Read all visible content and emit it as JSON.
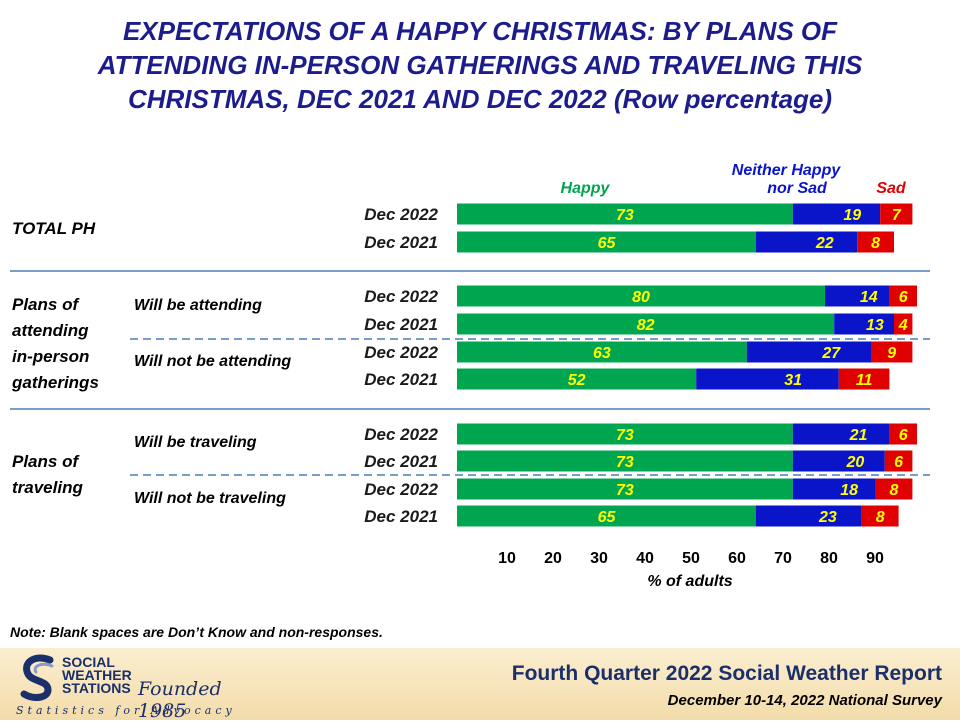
{
  "title": {
    "line1": "EXPECTATIONS OF A HAPPY CHRISTMAS: BY PLANS OF",
    "line2": "ATTENDING IN-PERSON GATHERINGS AND TRAVELING THIS",
    "line3": "CHRISTMAS, DEC 2021 AND DEC 2022 (Row percentage)"
  },
  "chart_data": {
    "type": "bar",
    "orientation": "horizontal",
    "stacked": true,
    "xlabel": "% of adults",
    "xticks": [
      10,
      20,
      30,
      40,
      50,
      60,
      70,
      80,
      90
    ],
    "xlim": [
      0,
      100
    ],
    "grid": false,
    "legend": [
      {
        "label": "Happy",
        "color": "#00a550"
      },
      {
        "label": "Neither Happy nor Sad",
        "color": "#0a14c8"
      },
      {
        "label": "Sad",
        "color": "#e00000"
      }
    ],
    "groups": [
      {
        "label": "TOTAL PH",
        "subgroups": [
          {
            "label": "",
            "rows": [
              {
                "category": "Dec 2022",
                "values": [
                  73,
                  19,
                  7
                ]
              },
              {
                "category": "Dec 2021",
                "values": [
                  65,
                  22,
                  8
                ]
              }
            ]
          }
        ]
      },
      {
        "label": "Plans of attending in-person gatherings",
        "subgroups": [
          {
            "label": "Will be attending",
            "rows": [
              {
                "category": "Dec 2022",
                "values": [
                  80,
                  14,
                  6
                ]
              },
              {
                "category": "Dec 2021",
                "values": [
                  82,
                  13,
                  4
                ]
              }
            ]
          },
          {
            "label": "Will not be attending",
            "rows": [
              {
                "category": "Dec 2022",
                "values": [
                  63,
                  27,
                  9
                ]
              },
              {
                "category": "Dec 2021",
                "values": [
                  52,
                  31,
                  11
                ]
              }
            ]
          }
        ]
      },
      {
        "label": "Plans of traveling",
        "subgroups": [
          {
            "label": "Will be traveling",
            "rows": [
              {
                "category": "Dec 2022",
                "values": [
                  73,
                  21,
                  6
                ]
              },
              {
                "category": "Dec 2021",
                "values": [
                  73,
                  20,
                  6
                ]
              }
            ]
          },
          {
            "label": "Will not be traveling",
            "rows": [
              {
                "category": "Dec 2022",
                "values": [
                  73,
                  18,
                  8
                ]
              },
              {
                "category": "Dec 2021",
                "values": [
                  65,
                  23,
                  8
                ]
              }
            ]
          }
        ]
      }
    ],
    "group_label_lines": [
      [
        "TOTAL PH"
      ],
      [
        "Plans of",
        "attending",
        "in-person",
        "gatherings"
      ],
      [
        "Plans of",
        "traveling"
      ]
    ]
  },
  "colors": {
    "title": "#1c1c8c",
    "value_label": "#ffff00"
  },
  "note": "Note: Blank spaces are Don’t Know and non-responses.",
  "footer": {
    "org_lines": [
      "SOCIAL",
      "WEATHER",
      "STATIONS"
    ],
    "founded": "Founded 1985",
    "tagline": "Statistics for Advocacy",
    "report_title": "Fourth Quarter 2022 Social Weather Report",
    "report_subtitle": "December 10-14, 2022 National Survey"
  }
}
